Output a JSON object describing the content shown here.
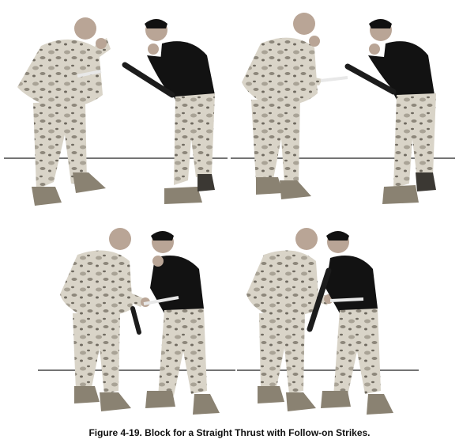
{
  "figure": {
    "caption": "Figure 4-19. Block for a Straight Thrust with Follow-on Strikes.",
    "panels": [
      {
        "step": 1,
        "description_icon": "knife-thrust-stance"
      },
      {
        "step": 2,
        "description_icon": "knife-thrust-approach"
      },
      {
        "step": 3,
        "description_icon": "block-contact"
      },
      {
        "step": 4,
        "description_icon": "follow-on-strike"
      }
    ]
  },
  "colors": {
    "camo_light": "#d9d4c8",
    "camo_mid": "#a9a396",
    "camo_dark": "#6f6a60",
    "black_shirt": "#121212",
    "skin": "#b9a596",
    "boots": "#8a8272",
    "blade": "#e8e8e8",
    "stick": "#1c1c1c",
    "ground_line": "#222222"
  }
}
